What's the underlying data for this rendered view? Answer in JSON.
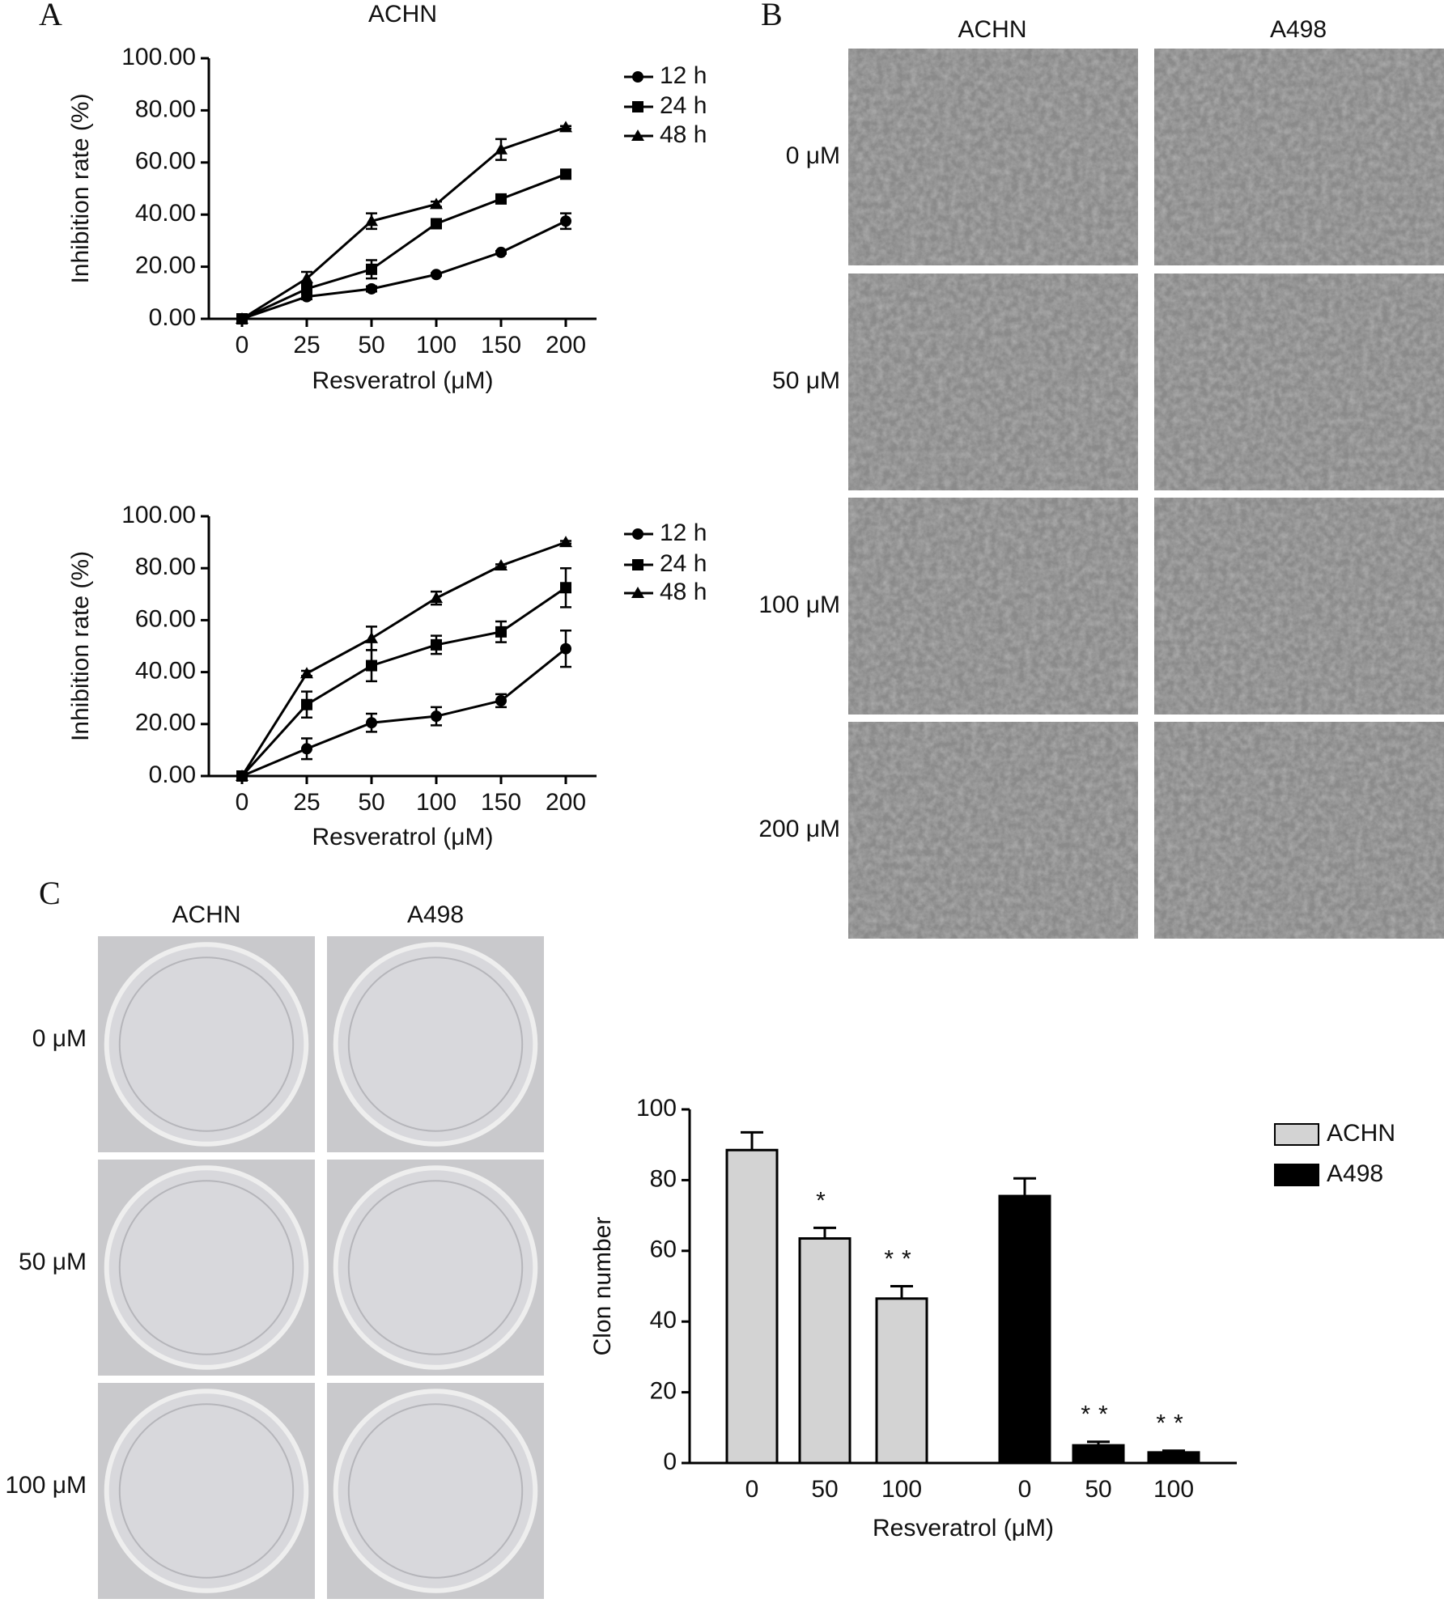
{
  "panels": {
    "A": {
      "label": "A"
    },
    "B": {
      "label": "B",
      "columns": [
        "ACHN",
        "A498"
      ],
      "rows": [
        "0 μM",
        "50 μM",
        "100 μM",
        "200 μM"
      ]
    },
    "C": {
      "label": "C",
      "columns": [
        "ACHN",
        "A498"
      ],
      "rows": [
        "0 μM",
        "50 μM",
        "100 μM"
      ]
    }
  },
  "chart_data": [
    {
      "type": "line",
      "title": "ACHN",
      "xlabel": "Resveratrol (μM)",
      "ylabel": "Inhibition rate (%)",
      "categories": [
        "0",
        "25",
        "50",
        "100",
        "150",
        "200"
      ],
      "ylim": [
        0,
        100
      ],
      "yticks": [
        {
          "value": 0,
          "label": "0.00"
        },
        {
          "value": 20,
          "label": "20.00"
        },
        {
          "value": 40,
          "label": "40.00"
        },
        {
          "value": 60,
          "label": "60.00"
        },
        {
          "value": 80,
          "label": "80.00"
        },
        {
          "value": 100,
          "label": "100.00"
        }
      ],
      "legend": "right",
      "series": [
        {
          "name": "12 h",
          "color": "#000000",
          "marker": "circle",
          "values": [
            0,
            8.5,
            11.5,
            17,
            25.5,
            37.5
          ],
          "errors": [
            0,
            1,
            1,
            0.5,
            0.5,
            3
          ]
        },
        {
          "name": "24 h",
          "color": "#000000",
          "marker": "square",
          "values": [
            0,
            11.5,
            19,
            36.5,
            46,
            55.5
          ],
          "errors": [
            0,
            1.5,
            3.5,
            1,
            1.5,
            1
          ]
        },
        {
          "name": "48 h",
          "color": "#000000",
          "marker": "triangle",
          "values": [
            0,
            15.5,
            37.5,
            44,
            65,
            73.5
          ],
          "errors": [
            0,
            2.5,
            3,
            1,
            4,
            0.5
          ]
        }
      ]
    },
    {
      "type": "line",
      "xlabel": "Resveratrol (μM)",
      "ylabel": "Inhibition rate (%)",
      "categories": [
        "0",
        "25",
        "50",
        "100",
        "150",
        "200"
      ],
      "ylim": [
        0,
        100
      ],
      "yticks": [
        {
          "value": 0,
          "label": "0.00"
        },
        {
          "value": 20,
          "label": "20.00"
        },
        {
          "value": 40,
          "label": "40.00"
        },
        {
          "value": 60,
          "label": "60.00"
        },
        {
          "value": 80,
          "label": "80.00"
        },
        {
          "value": 100,
          "label": "100.00"
        }
      ],
      "legend": "right",
      "series": [
        {
          "name": "12 h",
          "color": "#000000",
          "marker": "circle",
          "values": [
            0,
            10.5,
            20.5,
            23,
            29,
            49
          ],
          "errors": [
            0,
            4,
            3.5,
            3.5,
            2.5,
            7
          ]
        },
        {
          "name": "24 h",
          "color": "#000000",
          "marker": "square",
          "values": [
            0,
            27.5,
            42.5,
            50.5,
            55.5,
            72.5
          ],
          "errors": [
            0,
            5,
            6,
            3.5,
            4,
            7.5
          ]
        },
        {
          "name": "48 h",
          "color": "#000000",
          "marker": "triangle",
          "values": [
            0,
            39.5,
            53,
            68.5,
            81,
            90
          ],
          "errors": [
            0,
            1,
            4.5,
            2.5,
            0.5,
            0.5
          ]
        }
      ]
    },
    {
      "type": "bar",
      "xlabel": "Resveratrol (μM)",
      "ylabel": "Clon number",
      "categories": [
        "0",
        "50",
        "100",
        "0",
        "50",
        "100"
      ],
      "ylim": [
        0,
        100
      ],
      "yticks": [
        0,
        20,
        40,
        60,
        80,
        100
      ],
      "legend": "upper right",
      "series": [
        {
          "name": "ACHN",
          "color": "#d3d3d3",
          "values": [
            88.5,
            63.5,
            46.5,
            null,
            null,
            null
          ],
          "errors": [
            5,
            3,
            3.5,
            null,
            null,
            null
          ],
          "significance": [
            null,
            "*",
            "**",
            null,
            null,
            null
          ]
        },
        {
          "name": "A498",
          "color": "#000000",
          "values": [
            null,
            null,
            null,
            75.5,
            5,
            3
          ],
          "errors": [
            null,
            null,
            null,
            5,
            1,
            0.5
          ],
          "significance": [
            null,
            null,
            null,
            null,
            "**",
            "**"
          ]
        }
      ]
    }
  ]
}
